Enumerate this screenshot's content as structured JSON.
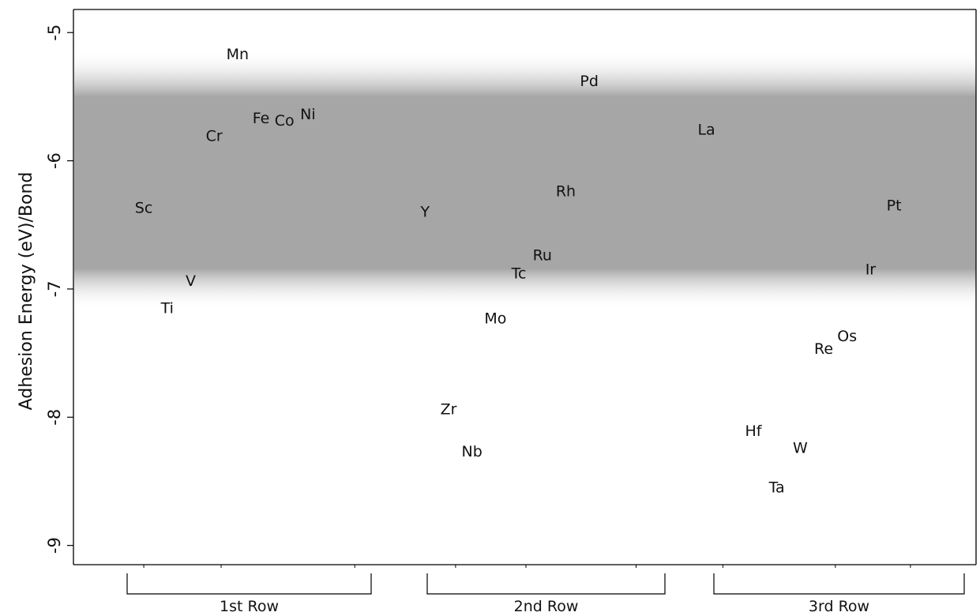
{
  "chart_data": {
    "type": "scatter",
    "ylabel": "Adhesion Energy (eV)/Bond",
    "ylim": [
      -9.15,
      -4.82
    ],
    "yticks": [
      -5,
      -6,
      -7,
      -8,
      -9
    ],
    "ytick_labels": [
      "-5",
      "-6",
      "-7",
      "-8",
      "-9"
    ],
    "band": {
      "y_from": -5.5,
      "y_to": -6.8,
      "color": "#a6a6a6"
    },
    "grid": false,
    "groups": [
      {
        "label": "1st Row",
        "elements": [
          "Sc",
          "Ti",
          "V",
          "Cr",
          "Mn",
          "Fe",
          "Co",
          "Ni"
        ]
      },
      {
        "label": "2nd Row",
        "elements": [
          "Y",
          "Zr",
          "Nb",
          "Mo",
          "Tc",
          "Ru",
          "Rh",
          "Pd"
        ]
      },
      {
        "label": "3rd Row",
        "elements": [
          "La",
          "Hf",
          "Ta",
          "W",
          "Re",
          "Os",
          "Ir",
          "Pt"
        ]
      }
    ],
    "points": [
      {
        "label": "Sc",
        "x": 4,
        "y": -6.37
      },
      {
        "label": "Ti",
        "x": 5,
        "y": -7.15
      },
      {
        "label": "V",
        "x": 6,
        "y": -6.94
      },
      {
        "label": "Cr",
        "x": 7,
        "y": -5.81
      },
      {
        "label": "Mn",
        "x": 8,
        "y": -5.17
      },
      {
        "label": "Fe",
        "x": 9,
        "y": -5.67
      },
      {
        "label": "Co",
        "x": 10,
        "y": -5.69
      },
      {
        "label": "Ni",
        "x": 11,
        "y": -5.64
      },
      {
        "label": "Y",
        "x": 16,
        "y": -6.4
      },
      {
        "label": "Zr",
        "x": 17,
        "y": -7.94
      },
      {
        "label": "Nb",
        "x": 18,
        "y": -8.27
      },
      {
        "label": "Mo",
        "x": 19,
        "y": -7.23
      },
      {
        "label": "Tc",
        "x": 20,
        "y": -6.88
      },
      {
        "label": "Ru",
        "x": 21,
        "y": -6.74
      },
      {
        "label": "Rh",
        "x": 22,
        "y": -6.24
      },
      {
        "label": "Pd",
        "x": 23,
        "y": -5.38
      },
      {
        "label": "La",
        "x": 28,
        "y": -5.76
      },
      {
        "label": "Hf",
        "x": 30,
        "y": -8.11
      },
      {
        "label": "Ta",
        "x": 31,
        "y": -8.55
      },
      {
        "label": "W",
        "x": 32,
        "y": -8.24
      },
      {
        "label": "Re",
        "x": 33,
        "y": -7.47
      },
      {
        "label": "Os",
        "x": 34,
        "y": -7.37
      },
      {
        "label": "Ir",
        "x": 35,
        "y": -6.85
      },
      {
        "label": "Pt",
        "x": 36,
        "y": -6.35
      }
    ]
  }
}
